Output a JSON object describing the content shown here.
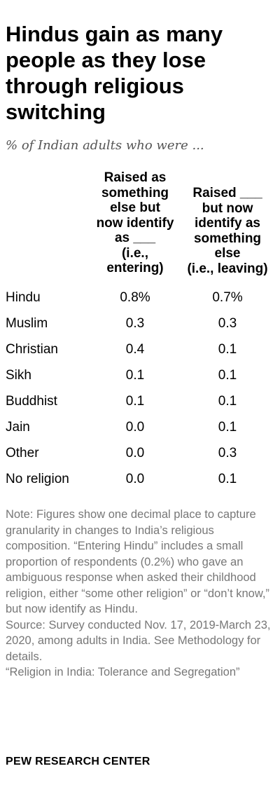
{
  "chart_data": {
    "type": "table",
    "title": "Hindus gain as many\npeople as they lose\nthrough religious\nswitching",
    "subtitle": "% of Indian adults who were ...",
    "columns": [
      "Raised as\nsomething\nelse but\nnow identify\nas ___\n(i.e.,\nentering)",
      "Raised ___\nbut now\nidentify as\nsomething\nelse\n(i.e., leaving)"
    ],
    "rows": [
      {
        "label": "Hindu",
        "entering": "0.8%",
        "leaving": "0.7%"
      },
      {
        "label": "Muslim",
        "entering": "0.3",
        "leaving": "0.3"
      },
      {
        "label": "Christian",
        "entering": "0.4",
        "leaving": "0.1"
      },
      {
        "label": "Sikh",
        "entering": "0.1",
        "leaving": "0.1"
      },
      {
        "label": "Buddhist",
        "entering": "0.1",
        "leaving": "0.1"
      },
      {
        "label": "Jain",
        "entering": "0.0",
        "leaving": "0.1"
      },
      {
        "label": "Other",
        "entering": "0.0",
        "leaving": "0.3"
      },
      {
        "label": "No religion",
        "entering": "0.0",
        "leaving": "0.1"
      }
    ],
    "note": "Note: Figures show one decimal place to capture granularity in changes to India’s religious composition. “Entering Hindu” includes a small proportion of respondents (0.2%) who gave an ambiguous response when asked their childhood religion, either “some other religion” or “don’t know,” but now identify as Hindu.",
    "source": "Source: Survey conducted Nov. 17, 2019-March 23, 2020, among adults in India. See Methodology for details.",
    "report": "“Religion in India: Tolerance and Segregation”",
    "brand": "PEW RESEARCH CENTER"
  }
}
